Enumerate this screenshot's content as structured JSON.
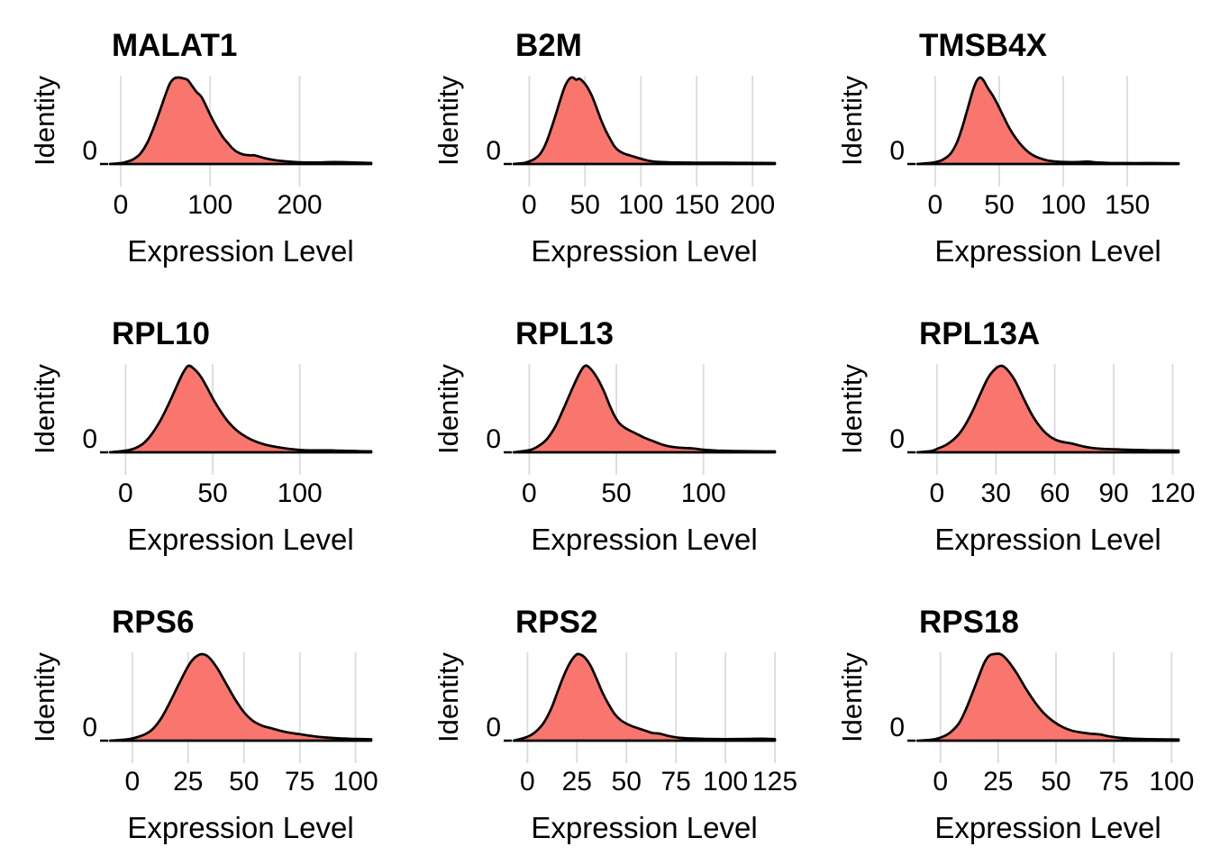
{
  "figure": {
    "layout": {
      "rows": 3,
      "cols": 3
    },
    "background": "#FFFFFF"
  },
  "style": {
    "fill": "#F8766D",
    "stroke": "#000000",
    "grid": "#DBDBDB",
    "text": "#000000"
  },
  "chart_data": [
    {
      "type": "area",
      "title": "MALAT1",
      "xlabel": "Expression Level",
      "ylabel": "Identity",
      "y_ticks": [
        "0"
      ],
      "x_ticks": [
        0,
        100,
        200
      ],
      "xlim": [
        -12,
        280
      ],
      "grid": true,
      "legend": "none",
      "points": [
        [
          -12,
          0
        ],
        [
          0,
          0.01
        ],
        [
          8,
          0.03
        ],
        [
          15,
          0.06
        ],
        [
          22,
          0.12
        ],
        [
          30,
          0.25
        ],
        [
          38,
          0.45
        ],
        [
          45,
          0.65
        ],
        [
          50,
          0.8
        ],
        [
          55,
          0.93
        ],
        [
          60,
          0.99
        ],
        [
          65,
          1.0
        ],
        [
          70,
          0.99
        ],
        [
          75,
          0.97
        ],
        [
          80,
          0.9
        ],
        [
          85,
          0.83
        ],
        [
          90,
          0.78
        ],
        [
          95,
          0.68
        ],
        [
          100,
          0.57
        ],
        [
          105,
          0.47
        ],
        [
          110,
          0.38
        ],
        [
          115,
          0.3
        ],
        [
          120,
          0.24
        ],
        [
          125,
          0.18
        ],
        [
          130,
          0.14
        ],
        [
          137,
          0.11
        ],
        [
          145,
          0.1
        ],
        [
          150,
          0.1
        ],
        [
          160,
          0.07
        ],
        [
          172,
          0.045
        ],
        [
          185,
          0.03
        ],
        [
          200,
          0.02
        ],
        [
          220,
          0.018
        ],
        [
          240,
          0.022
        ],
        [
          260,
          0.018
        ],
        [
          280,
          0.012
        ]
      ]
    },
    {
      "type": "area",
      "title": "B2M",
      "xlabel": "Expression Level",
      "ylabel": "Identity",
      "y_ticks": [
        "0"
      ],
      "x_ticks": [
        0,
        50,
        100,
        150,
        200
      ],
      "xlim": [
        -14,
        220
      ],
      "grid": true,
      "legend": "none",
      "points": [
        [
          -14,
          0
        ],
        [
          -5,
          0.01
        ],
        [
          0,
          0.03
        ],
        [
          5,
          0.06
        ],
        [
          10,
          0.12
        ],
        [
          15,
          0.24
        ],
        [
          20,
          0.42
        ],
        [
          24,
          0.58
        ],
        [
          28,
          0.75
        ],
        [
          32,
          0.9
        ],
        [
          36,
          0.985
        ],
        [
          39,
          1.0
        ],
        [
          42,
          0.975
        ],
        [
          45,
          0.985
        ],
        [
          48,
          0.955
        ],
        [
          52,
          0.89
        ],
        [
          56,
          0.79
        ],
        [
          60,
          0.66
        ],
        [
          64,
          0.52
        ],
        [
          68,
          0.4
        ],
        [
          72,
          0.3
        ],
        [
          76,
          0.21
        ],
        [
          80,
          0.155
        ],
        [
          85,
          0.12
        ],
        [
          90,
          0.1
        ],
        [
          95,
          0.08
        ],
        [
          100,
          0.06
        ],
        [
          106,
          0.04
        ],
        [
          112,
          0.028
        ],
        [
          120,
          0.022
        ],
        [
          132,
          0.018
        ],
        [
          148,
          0.015
        ],
        [
          165,
          0.015
        ],
        [
          185,
          0.014
        ],
        [
          205,
          0.012
        ],
        [
          220,
          0.01
        ]
      ]
    },
    {
      "type": "area",
      "title": "TMSB4X",
      "xlabel": "Expression Level",
      "ylabel": "Identity",
      "y_ticks": [
        "0"
      ],
      "x_ticks": [
        0,
        50,
        100,
        150
      ],
      "xlim": [
        -14,
        190
      ],
      "grid": true,
      "legend": "none",
      "points": [
        [
          -14,
          0
        ],
        [
          -5,
          0.01
        ],
        [
          0,
          0.02
        ],
        [
          6,
          0.05
        ],
        [
          12,
          0.12
        ],
        [
          17,
          0.25
        ],
        [
          21,
          0.42
        ],
        [
          25,
          0.62
        ],
        [
          29,
          0.83
        ],
        [
          32,
          0.95
        ],
        [
          35,
          1.0
        ],
        [
          38,
          0.96
        ],
        [
          41,
          0.88
        ],
        [
          45,
          0.79
        ],
        [
          49,
          0.68
        ],
        [
          53,
          0.56
        ],
        [
          57,
          0.44
        ],
        [
          61,
          0.34
        ],
        [
          66,
          0.24
        ],
        [
          71,
          0.16
        ],
        [
          76,
          0.105
        ],
        [
          82,
          0.065
        ],
        [
          88,
          0.04
        ],
        [
          95,
          0.028
        ],
        [
          103,
          0.022
        ],
        [
          111,
          0.022
        ],
        [
          119,
          0.028
        ],
        [
          126,
          0.018
        ],
        [
          135,
          0.012
        ],
        [
          150,
          0.01
        ],
        [
          170,
          0.01
        ],
        [
          190,
          0.008
        ]
      ]
    },
    {
      "type": "area",
      "title": "RPL10",
      "xlabel": "Expression Level",
      "ylabel": "Identity",
      "y_ticks": [
        "0"
      ],
      "x_ticks": [
        0,
        50,
        100
      ],
      "xlim": [
        -9,
        141
      ],
      "grid": true,
      "legend": "none",
      "points": [
        [
          -9,
          0
        ],
        [
          0,
          0.02
        ],
        [
          5,
          0.045
        ],
        [
          10,
          0.1
        ],
        [
          15,
          0.21
        ],
        [
          20,
          0.37
        ],
        [
          25,
          0.57
        ],
        [
          29,
          0.75
        ],
        [
          33,
          0.92
        ],
        [
          36,
          1.0
        ],
        [
          39,
          0.97
        ],
        [
          43,
          0.88
        ],
        [
          47,
          0.74
        ],
        [
          51,
          0.59
        ],
        [
          55,
          0.46
        ],
        [
          59,
          0.35
        ],
        [
          64,
          0.25
        ],
        [
          69,
          0.18
        ],
        [
          74,
          0.13
        ],
        [
          80,
          0.09
        ],
        [
          87,
          0.06
        ],
        [
          94,
          0.04
        ],
        [
          102,
          0.025
        ],
        [
          110,
          0.022
        ],
        [
          118,
          0.022
        ],
        [
          127,
          0.018
        ],
        [
          134,
          0.014
        ],
        [
          141,
          0.012
        ]
      ]
    },
    {
      "type": "area",
      "title": "RPL13",
      "xlabel": "Expression Level",
      "ylabel": "Identity",
      "y_ticks": [
        "0"
      ],
      "x_ticks": [
        0,
        50,
        100
      ],
      "xlim": [
        -9,
        141
      ],
      "grid": true,
      "legend": "none",
      "points": [
        [
          -9,
          0
        ],
        [
          0,
          0.025
        ],
        [
          5,
          0.07
        ],
        [
          10,
          0.15
        ],
        [
          15,
          0.3
        ],
        [
          20,
          0.52
        ],
        [
          25,
          0.75
        ],
        [
          29,
          0.92
        ],
        [
          32,
          1.0
        ],
        [
          35,
          0.97
        ],
        [
          39,
          0.86
        ],
        [
          43,
          0.7
        ],
        [
          46,
          0.55
        ],
        [
          49,
          0.42
        ],
        [
          52,
          0.33
        ],
        [
          56,
          0.27
        ],
        [
          61,
          0.22
        ],
        [
          66,
          0.17
        ],
        [
          71,
          0.13
        ],
        [
          77,
          0.085
        ],
        [
          83,
          0.06
        ],
        [
          89,
          0.05
        ],
        [
          94,
          0.045
        ],
        [
          100,
          0.03
        ],
        [
          108,
          0.02
        ],
        [
          118,
          0.015
        ],
        [
          130,
          0.013
        ],
        [
          141,
          0.01
        ]
      ]
    },
    {
      "type": "area",
      "title": "RPL13A",
      "xlabel": "Expression Level",
      "ylabel": "Identity",
      "y_ticks": [
        "0"
      ],
      "x_ticks": [
        0,
        30,
        60,
        90,
        120
      ],
      "xlim": [
        -10,
        123
      ],
      "grid": true,
      "legend": "none",
      "points": [
        [
          -10,
          0
        ],
        [
          -3,
          0.015
        ],
        [
          0,
          0.04
        ],
        [
          5,
          0.09
        ],
        [
          10,
          0.18
        ],
        [
          14,
          0.3
        ],
        [
          18,
          0.47
        ],
        [
          22,
          0.67
        ],
        [
          26,
          0.86
        ],
        [
          30,
          0.97
        ],
        [
          33,
          1.0
        ],
        [
          36,
          0.95
        ],
        [
          40,
          0.82
        ],
        [
          44,
          0.63
        ],
        [
          48,
          0.45
        ],
        [
          52,
          0.31
        ],
        [
          56,
          0.21
        ],
        [
          60,
          0.15
        ],
        [
          64,
          0.12
        ],
        [
          68,
          0.105
        ],
        [
          72,
          0.082
        ],
        [
          77,
          0.058
        ],
        [
          83,
          0.042
        ],
        [
          90,
          0.035
        ],
        [
          97,
          0.03
        ],
        [
          104,
          0.026
        ],
        [
          112,
          0.022
        ],
        [
          123,
          0.02
        ]
      ]
    },
    {
      "type": "area",
      "title": "RPS6",
      "xlabel": "Expression Level",
      "ylabel": "Identity",
      "y_ticks": [
        "0"
      ],
      "x_ticks": [
        0,
        25,
        50,
        75,
        100
      ],
      "xlim": [
        -10,
        107
      ],
      "grid": true,
      "legend": "none",
      "points": [
        [
          -10,
          0
        ],
        [
          -4,
          0.01
        ],
        [
          0,
          0.025
        ],
        [
          5,
          0.065
        ],
        [
          9,
          0.13
        ],
        [
          13,
          0.26
        ],
        [
          17,
          0.45
        ],
        [
          21,
          0.66
        ],
        [
          25,
          0.86
        ],
        [
          28,
          0.96
        ],
        [
          31,
          1.0
        ],
        [
          34,
          0.97
        ],
        [
          38,
          0.84
        ],
        [
          42,
          0.66
        ],
        [
          46,
          0.48
        ],
        [
          50,
          0.33
        ],
        [
          54,
          0.23
        ],
        [
          58,
          0.175
        ],
        [
          62,
          0.145
        ],
        [
          67,
          0.11
        ],
        [
          71,
          0.09
        ],
        [
          75,
          0.075
        ],
        [
          80,
          0.055
        ],
        [
          86,
          0.038
        ],
        [
          93,
          0.026
        ],
        [
          100,
          0.02
        ],
        [
          107,
          0.016
        ]
      ]
    },
    {
      "type": "area",
      "title": "RPS2",
      "xlabel": "Expression Level",
      "ylabel": "Identity",
      "y_ticks": [
        "0"
      ],
      "x_ticks": [
        0,
        25,
        50,
        75,
        100,
        125
      ],
      "xlim": [
        -7,
        125
      ],
      "grid": true,
      "legend": "none",
      "points": [
        [
          -7,
          0
        ],
        [
          0,
          0.045
        ],
        [
          4,
          0.1
        ],
        [
          8,
          0.2
        ],
        [
          12,
          0.37
        ],
        [
          15,
          0.55
        ],
        [
          18,
          0.73
        ],
        [
          21,
          0.88
        ],
        [
          24,
          0.98
        ],
        [
          26,
          1.0
        ],
        [
          29,
          0.96
        ],
        [
          32,
          0.86
        ],
        [
          35,
          0.71
        ],
        [
          38,
          0.55
        ],
        [
          41,
          0.42
        ],
        [
          44,
          0.31
        ],
        [
          47,
          0.24
        ],
        [
          51,
          0.185
        ],
        [
          55,
          0.15
        ],
        [
          59,
          0.12
        ],
        [
          63,
          0.09
        ],
        [
          67,
          0.08
        ],
        [
          71,
          0.055
        ],
        [
          76,
          0.035
        ],
        [
          82,
          0.026
        ],
        [
          90,
          0.02
        ],
        [
          100,
          0.018
        ],
        [
          110,
          0.02
        ],
        [
          118,
          0.022
        ],
        [
          125,
          0.018
        ]
      ]
    },
    {
      "type": "area",
      "title": "RPS18",
      "xlabel": "Expression Level",
      "ylabel": "Identity",
      "y_ticks": [
        "0"
      ],
      "x_ticks": [
        0,
        25,
        50,
        75,
        100
      ],
      "xlim": [
        -10,
        103
      ],
      "grid": true,
      "legend": "none",
      "points": [
        [
          -10,
          0
        ],
        [
          -4,
          0.01
        ],
        [
          0,
          0.035
        ],
        [
          4,
          0.09
        ],
        [
          8,
          0.2
        ],
        [
          11,
          0.36
        ],
        [
          14,
          0.56
        ],
        [
          17,
          0.77
        ],
        [
          19,
          0.9
        ],
        [
          21,
          0.98
        ],
        [
          23,
          1.0
        ],
        [
          26,
          1.0
        ],
        [
          29,
          0.93
        ],
        [
          33,
          0.78
        ],
        [
          37,
          0.6
        ],
        [
          41,
          0.44
        ],
        [
          45,
          0.31
        ],
        [
          49,
          0.22
        ],
        [
          53,
          0.155
        ],
        [
          57,
          0.115
        ],
        [
          61,
          0.095
        ],
        [
          65,
          0.08
        ],
        [
          69,
          0.072
        ],
        [
          73,
          0.05
        ],
        [
          78,
          0.032
        ],
        [
          84,
          0.022
        ],
        [
          91,
          0.017
        ],
        [
          98,
          0.015
        ],
        [
          103,
          0.014
        ]
      ]
    }
  ]
}
